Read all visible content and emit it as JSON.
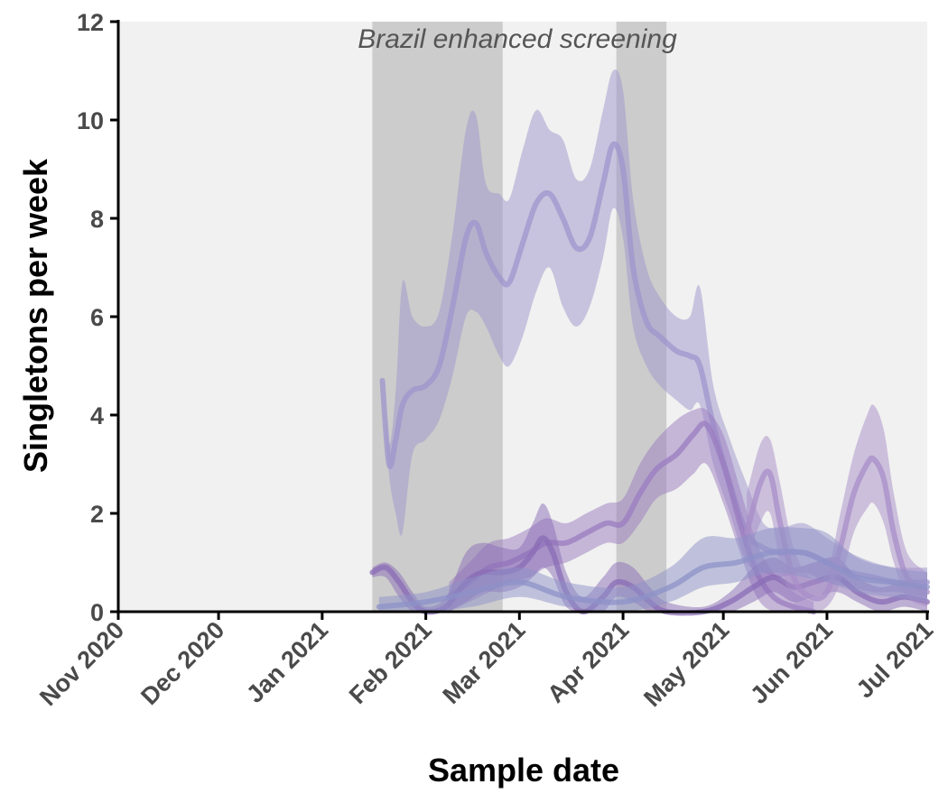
{
  "chart_data": {
    "type": "area",
    "title": "",
    "xlabel": "Sample date",
    "ylabel": "Singletons per week",
    "annotation": "Brazil enhanced screening",
    "xlim": [
      "2020-11-01",
      "2021-07-01"
    ],
    "ylim": [
      0,
      12
    ],
    "y_ticks": [
      0,
      2,
      4,
      6,
      8,
      10,
      12
    ],
    "x_ticks": [
      {
        "date": "2020-11-01",
        "label": "Nov 2020"
      },
      {
        "date": "2020-12-01",
        "label": "Dec 2020"
      },
      {
        "date": "2021-01-01",
        "label": "Jan 2021"
      },
      {
        "date": "2021-02-01",
        "label": "Feb 2021"
      },
      {
        "date": "2021-03-01",
        "label": "Mar 2021"
      },
      {
        "date": "2021-04-01",
        "label": "Apr 2021"
      },
      {
        "date": "2021-05-01",
        "label": "May 2021"
      },
      {
        "date": "2021-06-01",
        "label": "Jun 2021"
      },
      {
        "date": "2021-07-01",
        "label": "Jul 2021"
      }
    ],
    "shaded_periods": [
      {
        "start": "2021-01-16",
        "end": "2021-02-24"
      },
      {
        "start": "2021-03-30",
        "end": "2021-04-14"
      }
    ],
    "grid": false,
    "background": "#f1f1f1",
    "shade_color": "#cccccc",
    "series": [
      {
        "color": "#9d95cc",
        "points": [
          {
            "date": "2021-01-19",
            "y": 4.7,
            "lo": 4.7,
            "hi": 4.7
          },
          {
            "date": "2021-01-21",
            "y": 3.0,
            "lo": 2.8,
            "hi": 3.4
          },
          {
            "date": "2021-01-23",
            "y": 3.5,
            "lo": 2.0,
            "hi": 4.5
          },
          {
            "date": "2021-01-25",
            "y": 4.2,
            "lo": 1.6,
            "hi": 6.7
          },
          {
            "date": "2021-01-28",
            "y": 4.5,
            "lo": 3.2,
            "hi": 6.0
          },
          {
            "date": "2021-02-01",
            "y": 4.6,
            "lo": 3.5,
            "hi": 5.8
          },
          {
            "date": "2021-02-05",
            "y": 5.0,
            "lo": 3.9,
            "hi": 6.1
          },
          {
            "date": "2021-02-09",
            "y": 6.2,
            "lo": 4.8,
            "hi": 7.7
          },
          {
            "date": "2021-02-13",
            "y": 7.6,
            "lo": 6.0,
            "hi": 9.8
          },
          {
            "date": "2021-02-16",
            "y": 7.9,
            "lo": 6.1,
            "hi": 10.1
          },
          {
            "date": "2021-02-19",
            "y": 7.3,
            "lo": 5.8,
            "hi": 8.7
          },
          {
            "date": "2021-02-23",
            "y": 6.8,
            "lo": 5.2,
            "hi": 8.5
          },
          {
            "date": "2021-02-26",
            "y": 6.7,
            "lo": 5.0,
            "hi": 8.4
          },
          {
            "date": "2021-03-02",
            "y": 7.5,
            "lo": 5.6,
            "hi": 9.4
          },
          {
            "date": "2021-03-06",
            "y": 8.3,
            "lo": 6.5,
            "hi": 10.2
          },
          {
            "date": "2021-03-10",
            "y": 8.5,
            "lo": 7.0,
            "hi": 9.8
          },
          {
            "date": "2021-03-14",
            "y": 8.0,
            "lo": 6.2,
            "hi": 9.6
          },
          {
            "date": "2021-03-18",
            "y": 7.4,
            "lo": 5.8,
            "hi": 8.8
          },
          {
            "date": "2021-03-22",
            "y": 7.6,
            "lo": 6.2,
            "hi": 9.0
          },
          {
            "date": "2021-03-26",
            "y": 8.7,
            "lo": 7.2,
            "hi": 10.2
          },
          {
            "date": "2021-03-29",
            "y": 9.5,
            "lo": 8.2,
            "hi": 11.0
          },
          {
            "date": "2021-04-01",
            "y": 9.0,
            "lo": 7.6,
            "hi": 10.6
          },
          {
            "date": "2021-04-04",
            "y": 7.0,
            "lo": 5.8,
            "hi": 8.4
          },
          {
            "date": "2021-04-08",
            "y": 5.9,
            "lo": 5.0,
            "hi": 7.0
          },
          {
            "date": "2021-04-12",
            "y": 5.6,
            "lo": 4.6,
            "hi": 6.4
          },
          {
            "date": "2021-04-17",
            "y": 5.3,
            "lo": 4.3,
            "hi": 6.0
          },
          {
            "date": "2021-04-21",
            "y": 5.2,
            "lo": 4.1,
            "hi": 6.0
          },
          {
            "date": "2021-04-24",
            "y": 5.0,
            "lo": 4.2,
            "hi": 6.6
          },
          {
            "date": "2021-04-28",
            "y": 3.8,
            "lo": 3.0,
            "hi": 4.6
          },
          {
            "date": "2021-05-03",
            "y": 2.6,
            "lo": 2.0,
            "hi": 3.5
          },
          {
            "date": "2021-05-08",
            "y": 1.6,
            "lo": 1.0,
            "hi": 2.6
          },
          {
            "date": "2021-05-13",
            "y": 1.3,
            "lo": 0.8,
            "hi": 1.8
          },
          {
            "date": "2021-05-18",
            "y": 1.2,
            "lo": 0.7,
            "hi": 1.7
          },
          {
            "date": "2021-05-25",
            "y": 1.2,
            "lo": 0.8,
            "hi": 1.8
          },
          {
            "date": "2021-06-01",
            "y": 1.0,
            "lo": 0.6,
            "hi": 1.5
          },
          {
            "date": "2021-06-08",
            "y": 0.8,
            "lo": 0.5,
            "hi": 1.2
          },
          {
            "date": "2021-06-15",
            "y": 0.7,
            "lo": 0.4,
            "hi": 1.0
          },
          {
            "date": "2021-06-22",
            "y": 0.6,
            "lo": 0.4,
            "hi": 0.9
          },
          {
            "date": "2021-07-01",
            "y": 0.6,
            "lo": 0.3,
            "hi": 0.9
          }
        ]
      },
      {
        "color": "#9a7cc0",
        "points": [
          {
            "date": "2021-02-08",
            "y": 0.3,
            "lo": 0.0,
            "hi": 0.6
          },
          {
            "date": "2021-02-14",
            "y": 0.6,
            "lo": 0.2,
            "hi": 1.0
          },
          {
            "date": "2021-02-20",
            "y": 0.9,
            "lo": 0.4,
            "hi": 1.4
          },
          {
            "date": "2021-02-26",
            "y": 1.0,
            "lo": 0.6,
            "hi": 1.5
          },
          {
            "date": "2021-03-04",
            "y": 1.2,
            "lo": 0.7,
            "hi": 1.7
          },
          {
            "date": "2021-03-09",
            "y": 1.4,
            "lo": 0.9,
            "hi": 1.9
          },
          {
            "date": "2021-03-15",
            "y": 1.4,
            "lo": 1.0,
            "hi": 1.8
          },
          {
            "date": "2021-03-21",
            "y": 1.6,
            "lo": 1.2,
            "hi": 2.0
          },
          {
            "date": "2021-03-27",
            "y": 1.8,
            "lo": 1.4,
            "hi": 2.2
          },
          {
            "date": "2021-04-01",
            "y": 1.8,
            "lo": 1.4,
            "hi": 2.3
          },
          {
            "date": "2021-04-06",
            "y": 2.4,
            "lo": 1.8,
            "hi": 3.0
          },
          {
            "date": "2021-04-11",
            "y": 2.9,
            "lo": 2.3,
            "hi": 3.5
          },
          {
            "date": "2021-04-17",
            "y": 3.2,
            "lo": 2.5,
            "hi": 3.9
          },
          {
            "date": "2021-04-22",
            "y": 3.6,
            "lo": 2.8,
            "hi": 4.1
          },
          {
            "date": "2021-04-26",
            "y": 3.8,
            "lo": 3.0,
            "hi": 4.1
          },
          {
            "date": "2021-05-01",
            "y": 3.0,
            "lo": 2.2,
            "hi": 3.6
          },
          {
            "date": "2021-05-06",
            "y": 1.8,
            "lo": 1.2,
            "hi": 2.5
          },
          {
            "date": "2021-05-11",
            "y": 0.8,
            "lo": 0.3,
            "hi": 1.4
          },
          {
            "date": "2021-05-16",
            "y": 0.3,
            "lo": 0.0,
            "hi": 0.8
          },
          {
            "date": "2021-05-22",
            "y": 0.1,
            "lo": 0.0,
            "hi": 0.4
          },
          {
            "date": "2021-05-28",
            "y": 0.0,
            "lo": 0.0,
            "hi": 0.2
          }
        ]
      },
      {
        "color": "#8a6cb5",
        "points": [
          {
            "date": "2021-01-16",
            "y": 0.8,
            "lo": 0.7,
            "hi": 0.9
          },
          {
            "date": "2021-01-20",
            "y": 0.9,
            "lo": 0.7,
            "hi": 1.0
          },
          {
            "date": "2021-01-24",
            "y": 0.6,
            "lo": 0.3,
            "hi": 0.8
          },
          {
            "date": "2021-01-28",
            "y": 0.2,
            "lo": 0.0,
            "hi": 0.4
          },
          {
            "date": "2021-02-01",
            "y": 0.0,
            "lo": 0.0,
            "hi": 0.1
          },
          {
            "date": "2021-02-07",
            "y": 0.1,
            "lo": 0.0,
            "hi": 0.3
          },
          {
            "date": "2021-02-13",
            "y": 0.6,
            "lo": 0.2,
            "hi": 1.2
          },
          {
            "date": "2021-02-18",
            "y": 0.8,
            "lo": 0.4,
            "hi": 1.4
          },
          {
            "date": "2021-02-24",
            "y": 0.8,
            "lo": 0.4,
            "hi": 1.3
          },
          {
            "date": "2021-03-01",
            "y": 0.9,
            "lo": 0.5,
            "hi": 1.3
          },
          {
            "date": "2021-03-05",
            "y": 1.2,
            "lo": 0.7,
            "hi": 1.8
          },
          {
            "date": "2021-03-08",
            "y": 1.5,
            "lo": 0.9,
            "hi": 2.2
          },
          {
            "date": "2021-03-11",
            "y": 1.2,
            "lo": 0.7,
            "hi": 1.8
          },
          {
            "date": "2021-03-15",
            "y": 0.4,
            "lo": 0.1,
            "hi": 0.8
          },
          {
            "date": "2021-03-20",
            "y": 0.0,
            "lo": 0.0,
            "hi": 0.3
          },
          {
            "date": "2021-03-26",
            "y": 0.3,
            "lo": 0.0,
            "hi": 0.7
          },
          {
            "date": "2021-03-30",
            "y": 0.6,
            "lo": 0.3,
            "hi": 1.0
          },
          {
            "date": "2021-04-04",
            "y": 0.5,
            "lo": 0.2,
            "hi": 0.9
          },
          {
            "date": "2021-04-09",
            "y": 0.2,
            "lo": 0.0,
            "hi": 0.5
          },
          {
            "date": "2021-04-14",
            "y": 0.0,
            "lo": 0.0,
            "hi": 0.2
          },
          {
            "date": "2021-04-25",
            "y": 0.0,
            "lo": 0.0,
            "hi": 0.1
          },
          {
            "date": "2021-05-03",
            "y": 0.2,
            "lo": 0.0,
            "hi": 0.4
          },
          {
            "date": "2021-05-10",
            "y": 0.5,
            "lo": 0.2,
            "hi": 0.9
          },
          {
            "date": "2021-05-16",
            "y": 0.7,
            "lo": 0.4,
            "hi": 1.1
          },
          {
            "date": "2021-05-22",
            "y": 0.5,
            "lo": 0.2,
            "hi": 0.9
          },
          {
            "date": "2021-05-28",
            "y": 0.6,
            "lo": 0.3,
            "hi": 1.0
          },
          {
            "date": "2021-06-04",
            "y": 0.7,
            "lo": 0.4,
            "hi": 1.1
          },
          {
            "date": "2021-06-10",
            "y": 0.4,
            "lo": 0.2,
            "hi": 0.7
          },
          {
            "date": "2021-06-17",
            "y": 0.2,
            "lo": 0.0,
            "hi": 0.5
          },
          {
            "date": "2021-06-24",
            "y": 0.3,
            "lo": 0.1,
            "hi": 0.6
          },
          {
            "date": "2021-07-01",
            "y": 0.2,
            "lo": 0.0,
            "hi": 0.5
          }
        ]
      },
      {
        "color": "#a88dc8",
        "points": [
          {
            "date": "2021-05-08",
            "y": 1.6,
            "lo": 1.0,
            "hi": 2.4
          },
          {
            "date": "2021-05-12",
            "y": 2.6,
            "lo": 1.8,
            "hi": 3.4
          },
          {
            "date": "2021-05-15",
            "y": 2.8,
            "lo": 2.0,
            "hi": 3.5
          },
          {
            "date": "2021-05-18",
            "y": 1.8,
            "lo": 1.0,
            "hi": 2.6
          },
          {
            "date": "2021-05-22",
            "y": 0.7,
            "lo": 0.2,
            "hi": 1.3
          },
          {
            "date": "2021-05-27",
            "y": 0.3,
            "lo": 0.0,
            "hi": 0.7
          },
          {
            "date": "2021-06-01",
            "y": 0.4,
            "lo": 0.1,
            "hi": 0.8
          },
          {
            "date": "2021-06-05",
            "y": 1.3,
            "lo": 0.6,
            "hi": 2.0
          },
          {
            "date": "2021-06-09",
            "y": 2.4,
            "lo": 1.6,
            "hi": 3.2
          },
          {
            "date": "2021-06-13",
            "y": 3.0,
            "lo": 2.1,
            "hi": 4.0
          },
          {
            "date": "2021-06-15",
            "y": 3.1,
            "lo": 2.2,
            "hi": 4.2
          },
          {
            "date": "2021-06-18",
            "y": 2.7,
            "lo": 1.8,
            "hi": 3.7
          },
          {
            "date": "2021-06-21",
            "y": 1.6,
            "lo": 1.0,
            "hi": 2.4
          },
          {
            "date": "2021-06-25",
            "y": 0.7,
            "lo": 0.3,
            "hi": 1.2
          },
          {
            "date": "2021-07-01",
            "y": 0.4,
            "lo": 0.1,
            "hi": 0.8
          }
        ]
      },
      {
        "color": "#8e92c8",
        "points": [
          {
            "date": "2021-01-18",
            "y": 0.1,
            "lo": 0.0,
            "hi": 0.3
          },
          {
            "date": "2021-02-01",
            "y": 0.2,
            "lo": 0.0,
            "hi": 0.4
          },
          {
            "date": "2021-02-15",
            "y": 0.4,
            "lo": 0.1,
            "hi": 0.7
          },
          {
            "date": "2021-03-01",
            "y": 0.6,
            "lo": 0.3,
            "hi": 0.9
          },
          {
            "date": "2021-03-15",
            "y": 0.3,
            "lo": 0.1,
            "hi": 0.6
          },
          {
            "date": "2021-04-01",
            "y": 0.2,
            "lo": 0.0,
            "hi": 0.5
          },
          {
            "date": "2021-04-15",
            "y": 0.5,
            "lo": 0.2,
            "hi": 0.9
          },
          {
            "date": "2021-04-25",
            "y": 0.9,
            "lo": 0.5,
            "hi": 1.5
          },
          {
            "date": "2021-05-05",
            "y": 1.0,
            "lo": 0.6,
            "hi": 1.5
          },
          {
            "date": "2021-05-15",
            "y": 1.2,
            "lo": 0.8,
            "hi": 1.7
          },
          {
            "date": "2021-05-25",
            "y": 1.2,
            "lo": 0.7,
            "hi": 1.7
          },
          {
            "date": "2021-06-01",
            "y": 1.0,
            "lo": 0.6,
            "hi": 1.6
          },
          {
            "date": "2021-06-10",
            "y": 0.7,
            "lo": 0.4,
            "hi": 1.1
          },
          {
            "date": "2021-06-20",
            "y": 0.6,
            "lo": 0.3,
            "hi": 0.9
          },
          {
            "date": "2021-07-01",
            "y": 0.5,
            "lo": 0.2,
            "hi": 0.8
          }
        ]
      }
    ]
  }
}
